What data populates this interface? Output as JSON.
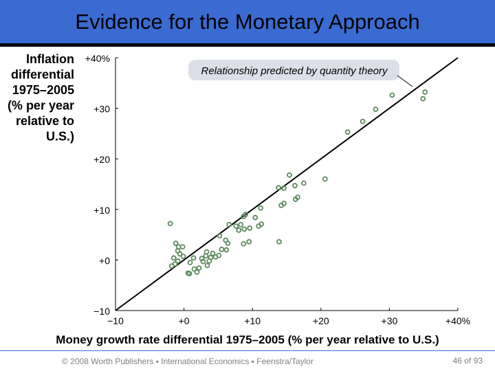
{
  "slide": {
    "title": "Evidence for the Monetary Approach",
    "footer": "© 2008 Worth Publishers ▪ International Economics ▪ Feenstra/Taylor",
    "page_number": "46",
    "page_of": "of",
    "page_total": "93"
  },
  "colors": {
    "title_bar": "#3a6bd0",
    "point_stroke": "#5d8a5d",
    "callout_fill": "#dcdfe8",
    "line": "#000000"
  },
  "chart_data": {
    "type": "scatter",
    "ylabel_lines": [
      "Inflation",
      "differential",
      "1975–2005",
      "(% per year",
      "relative to",
      "U.S.)"
    ],
    "xlabel": "Money growth rate differential 1975–2005 (% per year relative to U.S.)",
    "xlim": [
      -10,
      40
    ],
    "ylim": [
      -10,
      40
    ],
    "x_ticks": [
      -10,
      0,
      10,
      20,
      30,
      40
    ],
    "y_ticks": [
      -10,
      0,
      10,
      20,
      30,
      40
    ],
    "x_tick_labels": [
      "−10",
      "+0",
      "+10",
      "+20",
      "+30",
      "+40%"
    ],
    "y_tick_labels": [
      "−10",
      "+0",
      "+10",
      "+20",
      "+30",
      "+40%"
    ],
    "annotation": "Relationship predicted by quantity theory",
    "fit_line": {
      "x": [
        -10,
        40
      ],
      "y": [
        -10,
        40
      ]
    },
    "points": [
      {
        "x": -2.0,
        "y": 7.2
      },
      {
        "x": -1.2,
        "y": 3.3
      },
      {
        "x": -0.8,
        "y": 2.6
      },
      {
        "x": -0.2,
        "y": 2.6
      },
      {
        "x": -0.9,
        "y": 1.8
      },
      {
        "x": -0.6,
        "y": 1.2
      },
      {
        "x": -1.5,
        "y": 0.4
      },
      {
        "x": -0.9,
        "y": -0.2
      },
      {
        "x": -1.3,
        "y": -0.8
      },
      {
        "x": -0.1,
        "y": 0.7
      },
      {
        "x": 1.4,
        "y": 0.4
      },
      {
        "x": 0.9,
        "y": -0.5
      },
      {
        "x": 1.5,
        "y": -1.8
      },
      {
        "x": 2.6,
        "y": 0.3
      },
      {
        "x": 3.2,
        "y": 0.8
      },
      {
        "x": 3.3,
        "y": 1.6
      },
      {
        "x": 3.9,
        "y": 0.5
      },
      {
        "x": 3.7,
        "y": -0.2
      },
      {
        "x": 2.8,
        "y": -0.3
      },
      {
        "x": 4.2,
        "y": 1.3
      },
      {
        "x": 4.6,
        "y": 0.6
      },
      {
        "x": 5.1,
        "y": 0.9
      },
      {
        "x": 5.5,
        "y": 2.1
      },
      {
        "x": 6.2,
        "y": 2.0
      },
      {
        "x": 6.4,
        "y": 3.3
      },
      {
        "x": 6.1,
        "y": 3.9
      },
      {
        "x": 5.2,
        "y": 4.8
      },
      {
        "x": 6.6,
        "y": 7.0
      },
      {
        "x": 7.6,
        "y": 6.7
      },
      {
        "x": 8.0,
        "y": 5.9
      },
      {
        "x": 8.3,
        "y": 7.0
      },
      {
        "x": 8.8,
        "y": 6.1
      },
      {
        "x": 8.7,
        "y": 8.6
      },
      {
        "x": 9.0,
        "y": 9.0
      },
      {
        "x": 9.6,
        "y": 6.3
      },
      {
        "x": 10.4,
        "y": 8.4
      },
      {
        "x": 10.9,
        "y": 6.7
      },
      {
        "x": 11.3,
        "y": 7.1
      },
      {
        "x": 11.2,
        "y": 10.3
      },
      {
        "x": 9.5,
        "y": 3.6
      },
      {
        "x": 8.7,
        "y": 3.2
      },
      {
        "x": 13.8,
        "y": 14.3
      },
      {
        "x": 14.6,
        "y": 14.2
      },
      {
        "x": 15.4,
        "y": 16.8
      },
      {
        "x": 16.2,
        "y": 14.7
      },
      {
        "x": 17.5,
        "y": 15.2
      },
      {
        "x": 16.3,
        "y": 12.0
      },
      {
        "x": 16.6,
        "y": 12.4
      },
      {
        "x": 14.6,
        "y": 11.2
      },
      {
        "x": 14.2,
        "y": 10.8
      },
      {
        "x": 20.6,
        "y": 16.0
      },
      {
        "x": 13.9,
        "y": 3.6
      },
      {
        "x": 23.9,
        "y": 25.3
      },
      {
        "x": 26.1,
        "y": 27.4
      },
      {
        "x": 28.0,
        "y": 29.8
      },
      {
        "x": 30.4,
        "y": 32.6
      },
      {
        "x": 35.2,
        "y": 33.2
      },
      {
        "x": 34.9,
        "y": 31.9
      },
      {
        "x": -1.8,
        "y": -1.2
      },
      {
        "x": 0.6,
        "y": -2.6
      },
      {
        "x": 0.8,
        "y": -2.7
      },
      {
        "x": 1.9,
        "y": -2.4
      },
      {
        "x": 2.2,
        "y": -1.6
      },
      {
        "x": 3.4,
        "y": -1.1
      }
    ]
  }
}
